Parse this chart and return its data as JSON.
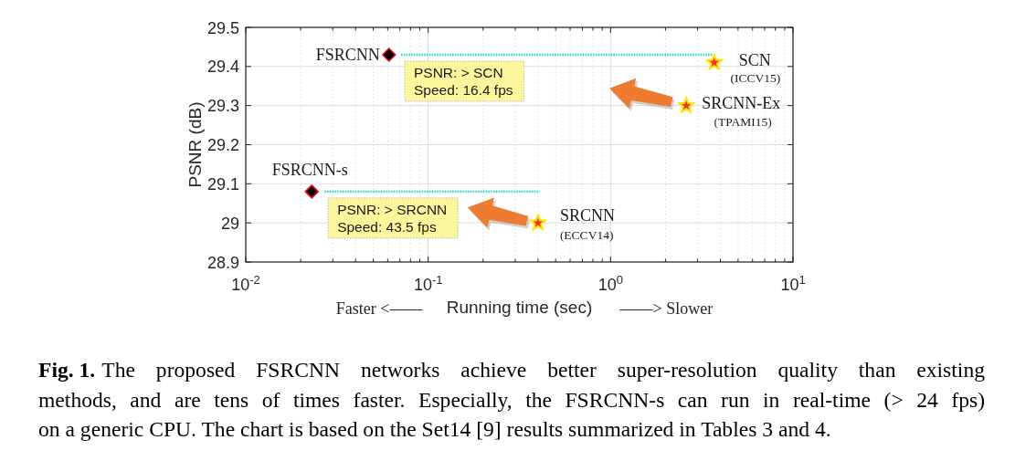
{
  "chart_data": {
    "type": "scatter",
    "log": "x",
    "grid": true,
    "xlabel": "Running time (sec)",
    "ylabel": "PSNR (dB)",
    "xlim": [
      0.01,
      10
    ],
    "ylim": [
      28.9,
      29.5
    ],
    "xticks": [
      {
        "value": 0.01,
        "label": "10$^{-2}$"
      },
      {
        "value": 0.02,
        "label": null
      },
      {
        "value": 0.03,
        "label": null
      },
      {
        "value": 0.04,
        "label": null
      },
      {
        "value": 0.05,
        "label": null
      },
      {
        "value": 0.06,
        "label": null
      },
      {
        "value": 0.07,
        "label": null
      },
      {
        "value": 0.08,
        "label": null
      },
      {
        "value": 0.09,
        "label": null
      },
      {
        "value": 0.1,
        "label": "10$^{-1}$"
      },
      {
        "value": 0.2,
        "label": null
      },
      {
        "value": 0.3,
        "label": null
      },
      {
        "value": 0.4,
        "label": null
      },
      {
        "value": 0.5,
        "label": null
      },
      {
        "value": 0.6,
        "label": null
      },
      {
        "value": 0.7,
        "label": null
      },
      {
        "value": 0.8,
        "label": null
      },
      {
        "value": 0.9,
        "label": null
      },
      {
        "value": 1,
        "label": "10$^{0}$"
      },
      {
        "value": 2,
        "label": null
      },
      {
        "value": 3,
        "label": null
      },
      {
        "value": 4,
        "label": null
      },
      {
        "value": 5,
        "label": null
      },
      {
        "value": 6,
        "label": null
      },
      {
        "value": 7,
        "label": null
      },
      {
        "value": 8,
        "label": null
      },
      {
        "value": 9,
        "label": null
      },
      {
        "value": 10,
        "label": "10$^{1}$"
      }
    ],
    "yticks": [
      28.9,
      29,
      29.1,
      29.2,
      29.3,
      29.4,
      29.5
    ],
    "series": [
      {
        "name": "FSRCNN",
        "marker": "diamond",
        "color": "#000000",
        "x": [
          0.061
        ],
        "values": [
          29.43
        ]
      },
      {
        "name": "FSRCNN-s",
        "marker": "diamond",
        "color": "#000000",
        "x": [
          0.023
        ],
        "values": [
          29.08
        ]
      },
      {
        "name": "SCN",
        "marker": "star",
        "color": "#ff2a2a",
        "x": [
          3.7
        ],
        "values": [
          29.41
        ]
      },
      {
        "name": "SRCNN-Ex",
        "marker": "star",
        "color": "#ff2a2a",
        "x": [
          2.6
        ],
        "values": [
          29.3
        ]
      },
      {
        "name": "SRCNN",
        "marker": "star",
        "color": "#ff2a2a",
        "x": [
          0.4
        ],
        "values": [
          29.0
        ]
      },
      {
        "type": "line",
        "line_style": "dotted",
        "color": "#22e3c4",
        "x": [
          0.071,
          3.6
        ],
        "values": [
          29.43,
          29.43
        ]
      },
      {
        "type": "line",
        "line_style": "dotted",
        "color": "#22e3c4",
        "x": [
          0.027,
          0.41
        ],
        "values": [
          29.08,
          29.08
        ]
      }
    ],
    "annotations": [
      {
        "text": "(ICCV15)",
        "x": 3.7,
        "y": 29.41
      },
      {
        "text": "(TPAMI15)",
        "x": 2.6,
        "y": 29.3
      },
      {
        "text": "(ECCV14)",
        "x": 0.4,
        "y": 29.0
      },
      "PSNR: > SCN\nSpeed: 16.4 fps",
      "PSNR: > SRCNN\nSpeed: 43.5 fps",
      "Faster <——",
      "——> Slower",
      "Fig. 1.",
      "The proposed FSRCNN networks achieve better super-resolution quality than existing",
      "methods, and are tens of times faster. Especially, the FSRCNN-s can run in real-time (> 24 fps)",
      "on a generic CPU. The chart is based on the Set14 [9] results summarized in Tables 3 and 4."
    ]
  }
}
